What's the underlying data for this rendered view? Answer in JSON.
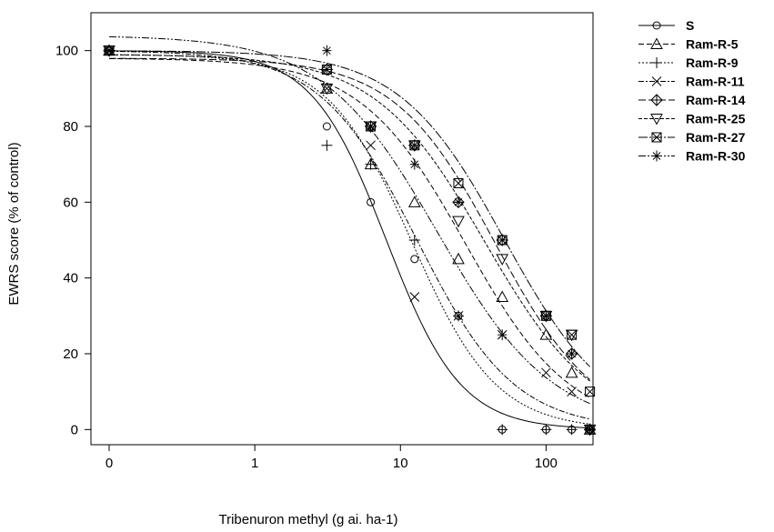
{
  "chart_data": {
    "type": "scatter",
    "xlabel": "Tribenuron methyl (g ai. ha-1)",
    "ylabel": "EWRS score (% of control)",
    "xscale": "log (0 placed at 0.1)",
    "x_ticks": [
      {
        "value": 0.1,
        "label": "0"
      },
      {
        "value": 1,
        "label": "1"
      },
      {
        "value": 10,
        "label": "10"
      },
      {
        "value": 100,
        "label": "100"
      }
    ],
    "y_ticks": [
      0,
      20,
      40,
      60,
      80,
      100
    ],
    "xlim": [
      0.075,
      210
    ],
    "ylim": [
      -4,
      110
    ],
    "legend_position": "right",
    "grid": false,
    "series": [
      {
        "name": "S",
        "marker": "circle",
        "dash": "",
        "curve": {
          "c": 0,
          "d": 100,
          "b": 1.7,
          "e": 8
        },
        "points": [
          [
            0.1,
            100
          ],
          [
            3.125,
            80
          ],
          [
            6.25,
            60
          ],
          [
            12.5,
            45
          ],
          [
            25,
            30
          ],
          [
            50,
            0
          ],
          [
            100,
            0
          ],
          [
            150,
            0
          ],
          [
            200,
            0
          ]
        ]
      },
      {
        "name": "Ram-R-5",
        "marker": "triangle-up",
        "dash": "6,3",
        "curve": {
          "c": 0,
          "d": 98,
          "b": 1.2,
          "e": 28
        },
        "points": [
          [
            0.1,
            100
          ],
          [
            3.125,
            90
          ],
          [
            6.25,
            70
          ],
          [
            12.5,
            60
          ],
          [
            25,
            45
          ],
          [
            50,
            35
          ],
          [
            100,
            25
          ],
          [
            150,
            15
          ],
          [
            200,
            0
          ]
        ]
      },
      {
        "name": "Ram-R-9",
        "marker": "plus",
        "dash": "2,2",
        "curve": {
          "c": 0,
          "d": 99,
          "b": 1.5,
          "e": 12
        },
        "points": [
          [
            0.1,
            100
          ],
          [
            3.125,
            75
          ],
          [
            6.25,
            70
          ],
          [
            12.5,
            50
          ],
          [
            25,
            30
          ],
          [
            50,
            0
          ],
          [
            100,
            0
          ],
          [
            150,
            0
          ],
          [
            200,
            0
          ]
        ]
      },
      {
        "name": "Ram-R-11",
        "marker": "cross",
        "dash": "6,2,2,2",
        "curve": {
          "c": 0,
          "d": 100,
          "b": 1.3,
          "e": 13
        },
        "points": [
          [
            0.1,
            100
          ],
          [
            3.125,
            90
          ],
          [
            6.25,
            75
          ],
          [
            12.5,
            35
          ],
          [
            25,
            30
          ],
          [
            50,
            25
          ],
          [
            100,
            15
          ],
          [
            150,
            10
          ],
          [
            200,
            0
          ]
        ]
      },
      {
        "name": "Ram-R-14",
        "marker": "diamond-plus",
        "dash": "8,3",
        "curve": {
          "c": 0,
          "d": 98,
          "b": 1.25,
          "e": 45
        },
        "points": [
          [
            0.1,
            100
          ],
          [
            3.125,
            95
          ],
          [
            6.25,
            80
          ],
          [
            12.5,
            75
          ],
          [
            25,
            60
          ],
          [
            50,
            50
          ],
          [
            100,
            30
          ],
          [
            150,
            20
          ],
          [
            200,
            0
          ]
        ]
      },
      {
        "name": "Ram-R-25",
        "marker": "triangle-down",
        "dash": "4,2",
        "curve": {
          "c": 0,
          "d": 99,
          "b": 1.15,
          "e": 38
        },
        "points": [
          [
            0.1,
            100
          ],
          [
            3.125,
            90
          ],
          [
            6.25,
            80
          ],
          [
            12.5,
            75
          ],
          [
            25,
            55
          ],
          [
            50,
            45
          ],
          [
            100,
            30
          ],
          [
            150,
            25
          ],
          [
            200,
            0
          ]
        ]
      },
      {
        "name": "Ram-R-27",
        "marker": "square-x",
        "dash": "10,2,2,2",
        "curve": {
          "c": 0,
          "d": 100,
          "b": 1.2,
          "e": 52
        },
        "points": [
          [
            0.1,
            100
          ],
          [
            3.125,
            95
          ],
          [
            6.25,
            80
          ],
          [
            12.5,
            75
          ],
          [
            25,
            65
          ],
          [
            50,
            50
          ],
          [
            100,
            30
          ],
          [
            150,
            25
          ],
          [
            200,
            10
          ]
        ]
      },
      {
        "name": "Ram-R-30",
        "marker": "asterisk",
        "dash": "8,2,2,2,2,2",
        "curve": {
          "c": 0,
          "d": 104,
          "b": 1.1,
          "e": 18
        },
        "points": [
          [
            0.1,
            100
          ],
          [
            3.125,
            100
          ],
          [
            6.25,
            80
          ],
          [
            12.5,
            70
          ],
          [
            25,
            60
          ],
          [
            50,
            25
          ],
          [
            100,
            30
          ],
          [
            150,
            20
          ],
          [
            200,
            0
          ]
        ]
      }
    ]
  }
}
